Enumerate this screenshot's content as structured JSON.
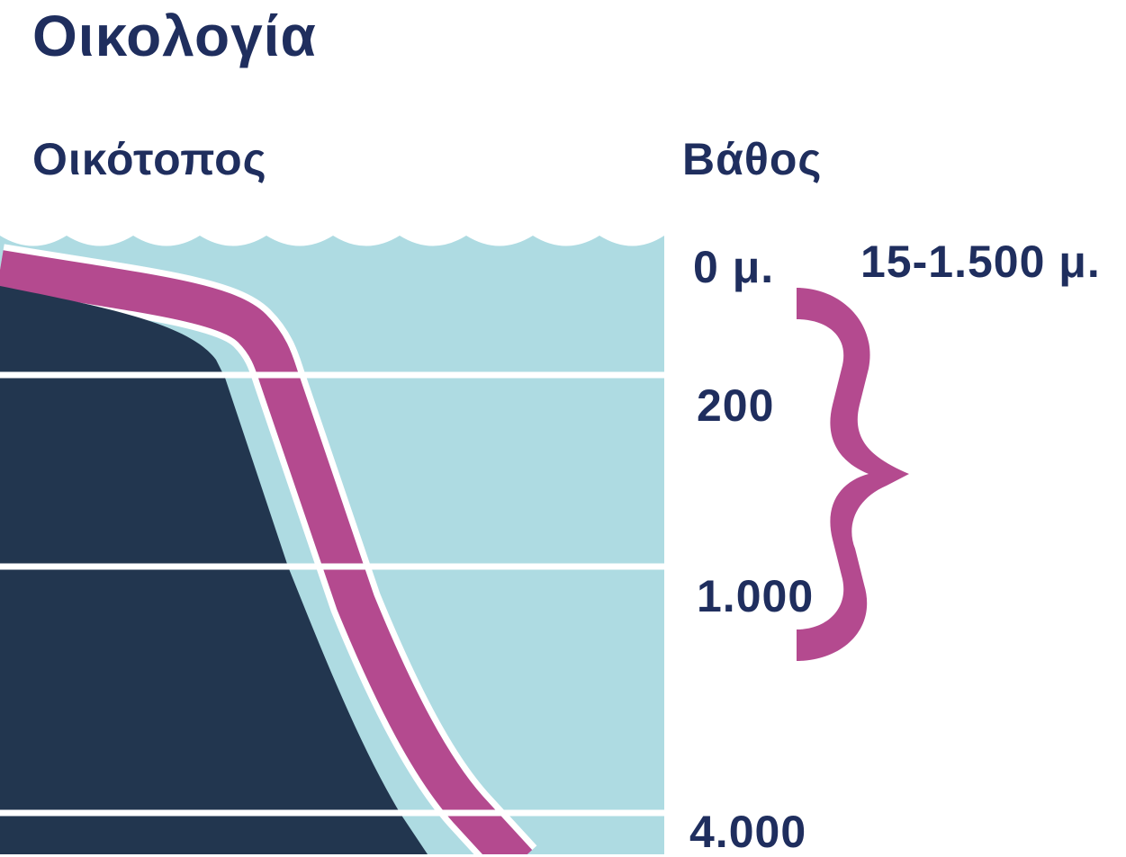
{
  "title": "Οικολογία",
  "columns": {
    "habitat": "Οικότοπος",
    "depth": "Βάθος"
  },
  "depth_markers": [
    "0 μ.",
    "200",
    "1.000",
    "4.000"
  ],
  "brace_range": "15-1.500 μ.",
  "colors": {
    "heading": "#1f2e5e",
    "water": "#aedbe2",
    "seabed": "#22364f",
    "habitat_band": "#b44a8f",
    "brace": "#b44a8f",
    "lines": "#ffffff"
  }
}
